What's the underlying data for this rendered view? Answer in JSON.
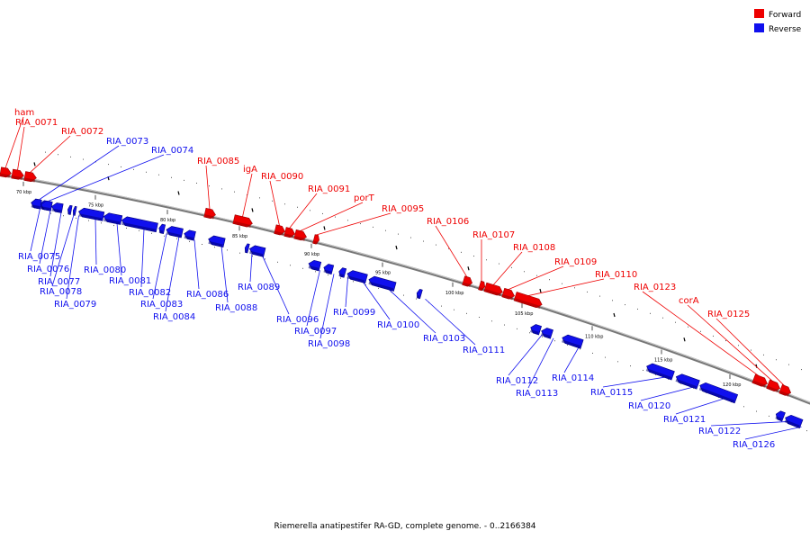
{
  "caption": "Riemerella anatipestifer RA-GD, complete genome. - 0..2166384",
  "legend": [
    {
      "label": "Forward",
      "color": "#ee0000"
    },
    {
      "label": "Reverse",
      "color": "#1010ee"
    }
  ],
  "ticks": [
    "70 kbp",
    "75 kbp",
    "80 kbp",
    "85 kbp",
    "90 kbp",
    "95 kbp",
    "100 kbp",
    "105 kbp",
    "110 kbp",
    "115 kbp",
    "120 kbp"
  ],
  "forward_genes": [
    "ham",
    "RIA_0071",
    "RIA_0072",
    "RIA_0085",
    "igA",
    "RIA_0090",
    "RIA_0091",
    "porT",
    "RIA_0095",
    "RIA_0106",
    "RIA_0107",
    "RIA_0108",
    "RIA_0109",
    "RIA_0110",
    "RIA_0123",
    "corA",
    "RIA_0125"
  ],
  "reverse_genes": [
    "RIA_0073",
    "RIA_0074",
    "RIA_0075",
    "RIA_0076",
    "RIA_0077",
    "RIA_0078",
    "RIA_0079",
    "RIA_0080",
    "RIA_0081",
    "RIA_0082",
    "RIA_0083",
    "RIA_0084",
    "RIA_0086",
    "RIA_0088",
    "RIA_0089",
    "RIA_0096",
    "RIA_0097",
    "RIA_0098",
    "RIA_0099",
    "RIA_0100",
    "RIA_0103",
    "RIA_0111",
    "RIA_0112",
    "RIA_0113",
    "RIA_0114",
    "RIA_0115",
    "RIA_0120",
    "RIA_0121",
    "RIA_0122",
    "RIA_0126"
  ]
}
